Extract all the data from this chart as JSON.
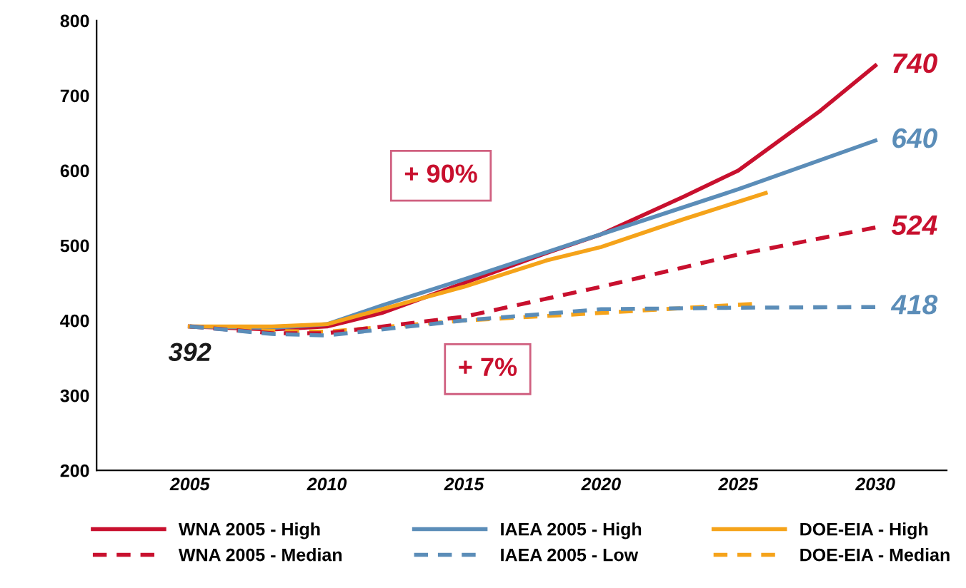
{
  "chart_data": {
    "type": "line",
    "xlim": [
      2001.6,
      2032.6
    ],
    "xticks": [
      2005,
      2010,
      2015,
      2020,
      2025,
      2030
    ],
    "ylim": [
      200,
      800
    ],
    "yticks": [
      200,
      300,
      400,
      500,
      600,
      700,
      800
    ],
    "grid": false,
    "legend": "bottom",
    "marker": "none",
    "series": [
      {
        "name": "WNA 2005 - High",
        "color": "#c8102e",
        "line_style": "solid",
        "x": [
          2005,
          2008,
          2010,
          2012,
          2015,
          2018,
          2020,
          2023,
          2025,
          2028,
          2030
        ],
        "values": [
          392,
          388,
          392,
          410,
          450,
          490,
          515,
          565,
          600,
          680,
          740
        ],
        "value_labels": [
          null,
          null,
          null,
          null,
          null,
          null,
          null,
          null,
          null,
          null,
          "740"
        ]
      },
      {
        "name": "IAEA 2005 - High",
        "color": "#5b8db8",
        "line_style": "solid",
        "x": [
          2005,
          2008,
          2010,
          2012,
          2015,
          2020,
          2025,
          2030
        ],
        "values": [
          392,
          390,
          395,
          420,
          455,
          515,
          575,
          640
        ],
        "value_labels": [
          null,
          null,
          null,
          null,
          null,
          null,
          null,
          "640"
        ]
      },
      {
        "name": "DOE-EIA - High",
        "color": "#f5a31a",
        "line_style": "solid",
        "x": [
          2005,
          2008,
          2010,
          2012,
          2015,
          2018,
          2020,
          2023,
          2026
        ],
        "values": [
          392,
          392,
          395,
          415,
          445,
          480,
          498,
          535,
          570
        ]
      },
      {
        "name": "WNA 2005 - Median",
        "color": "#c8102e",
        "line_style": "dashed",
        "x": [
          2005,
          2008,
          2010,
          2015,
          2020,
          2025,
          2030
        ],
        "values": [
          392,
          383,
          383,
          405,
          445,
          488,
          524
        ],
        "value_labels": [
          null,
          null,
          null,
          null,
          null,
          null,
          "524"
        ]
      },
      {
        "name": "IAEA 2005 - Low",
        "color": "#5b8db8",
        "line_style": "dashed",
        "x": [
          2005,
          2008,
          2010,
          2015,
          2020,
          2025,
          2030
        ],
        "values": [
          392,
          382,
          380,
          400,
          415,
          417,
          418
        ],
        "value_labels": [
          "392",
          null,
          null,
          null,
          null,
          null,
          "418"
        ]
      },
      {
        "name": "DOE-EIA - Median",
        "color": "#f5a31a",
        "line_style": "dashed",
        "x": [
          2005,
          2008,
          2010,
          2015,
          2020,
          2025.5
        ],
        "values": [
          392,
          386,
          385,
          400,
          410,
          422
        ]
      }
    ],
    "annotations": [
      "+ 90%",
      "+ 7%"
    ]
  }
}
